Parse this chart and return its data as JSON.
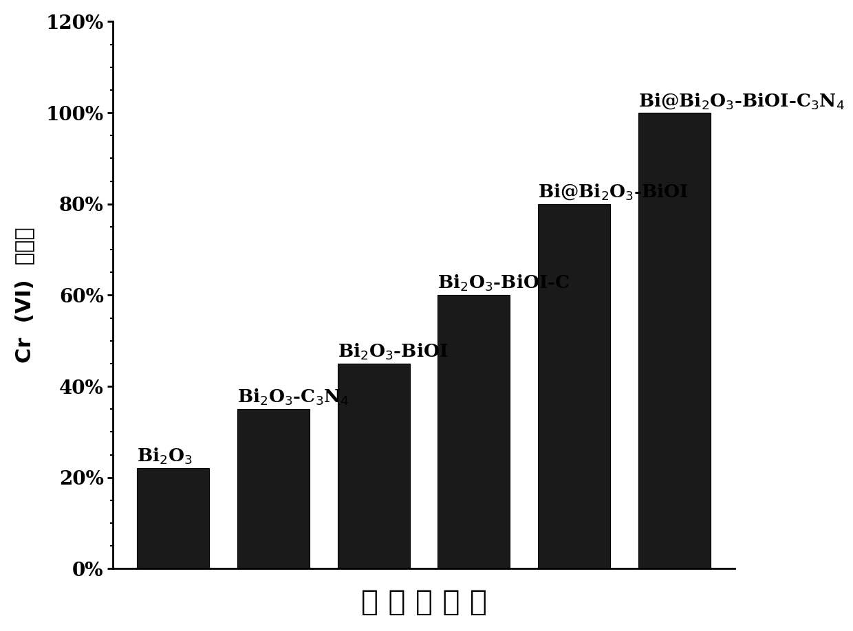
{
  "values": [
    0.22,
    0.35,
    0.45,
    0.6,
    0.8,
    1.0
  ],
  "bar_color": "#1a1a1a",
  "bar_labels": [
    "Bi$_2$O$_3$",
    "Bi$_2$O$_3$-C$_3$N$_4$",
    "Bi$_2$O$_3$-BiOI",
    "Bi$_2$O$_3$-BiOI-C",
    "Bi@Bi$_2$O$_3$-BiOI",
    "Bi@Bi$_2$O$_3$-BiOI-C$_3$N$_4$"
  ],
  "ylabel_line1": "Cr",
  "ylabel_line2": "(VI)",
  "ylabel_line3": "去除率",
  "xlabel": "催 化 剂 种 类",
  "ylim": [
    0,
    1.2
  ],
  "yticks": [
    0.0,
    0.2,
    0.4,
    0.6,
    0.8,
    1.0,
    1.2
  ],
  "ytick_labels": [
    "0%",
    "20%",
    "40%",
    "60%",
    "80%",
    "100%",
    "120%"
  ],
  "background_color": "#ffffff",
  "bar_edge_color": "#000000",
  "label_fontsize": 19,
  "tick_fontsize": 20,
  "xlabel_fontsize": 30,
  "ylabel_fontsize": 22
}
